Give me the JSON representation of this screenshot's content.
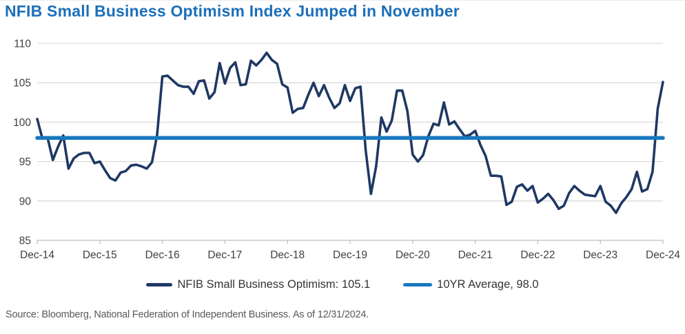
{
  "header": {
    "title": "NFIB Small Business Optimism Index Jumped in November"
  },
  "chart_data": {
    "type": "line",
    "title": "NFIB Small Business Optimism Index Jumped in November",
    "frequency": "monthly",
    "x_start": "Dec-14",
    "x_end": "Dec-24",
    "x_tick_labels": [
      "Dec-14",
      "Dec-15",
      "Dec-16",
      "Dec-17",
      "Dec-18",
      "Dec-19",
      "Dec-20",
      "Dec-21",
      "Dec-22",
      "Dec-23",
      "Dec-24"
    ],
    "months_per_tick": 12,
    "y_ticks": [
      85,
      90,
      95,
      100,
      105,
      110
    ],
    "ylim": [
      85,
      110
    ],
    "grid": true,
    "legend_position": "bottom",
    "series": [
      {
        "name": "NFIB Small Business Optimism: 105.1",
        "color": "#1f3864",
        "latest_value": 105.1,
        "values": [
          100.4,
          97.9,
          98.0,
          95.2,
          96.9,
          98.3,
          94.1,
          95.4,
          95.9,
          96.1,
          96.1,
          94.8,
          95.0,
          93.9,
          92.9,
          92.6,
          93.6,
          93.8,
          94.5,
          94.6,
          94.4,
          94.1,
          94.9,
          98.4,
          105.8,
          105.9,
          105.3,
          104.7,
          104.5,
          104.5,
          103.6,
          105.2,
          105.3,
          103.0,
          103.8,
          107.5,
          104.9,
          106.9,
          107.6,
          104.7,
          104.8,
          107.8,
          107.2,
          107.9,
          108.8,
          107.9,
          107.4,
          104.8,
          104.4,
          101.2,
          101.7,
          101.8,
          103.5,
          105.0,
          103.3,
          104.7,
          103.1,
          101.8,
          102.4,
          104.7,
          102.7,
          104.3,
          104.5,
          96.4,
          90.9,
          94.4,
          100.6,
          98.8,
          100.2,
          104.0,
          104.0,
          101.4,
          95.9,
          95.0,
          95.8,
          98.2,
          99.8,
          99.6,
          102.5,
          99.7,
          100.1,
          99.1,
          98.2,
          98.4,
          98.9,
          97.1,
          95.7,
          93.2,
          93.2,
          93.1,
          89.5,
          89.9,
          91.8,
          92.1,
          91.3,
          91.9,
          89.8,
          90.3,
          90.9,
          90.1,
          89.0,
          89.4,
          91.0,
          91.9,
          91.3,
          90.8,
          90.7,
          90.6,
          91.9,
          89.9,
          89.4,
          88.5,
          89.7,
          90.5,
          91.5,
          93.7,
          91.2,
          91.5,
          93.7,
          101.7,
          105.1
        ]
      },
      {
        "name": "10YR Average, 98.0",
        "color": "#1878be",
        "type": "constant",
        "value": 98.0
      }
    ]
  },
  "footer": {
    "source": "Source: Bloomberg, National Federation of Independent Business. As of 12/31/2024."
  },
  "colors": {
    "title": "#1d6fb8",
    "series_navy": "#1f3864",
    "average_blue": "#1878be",
    "gridline": "#d9d9d9",
    "axis_line": "#bfbfbf",
    "axis_text": "#404040",
    "legend_text": "#333333",
    "source_text": "#595959"
  }
}
